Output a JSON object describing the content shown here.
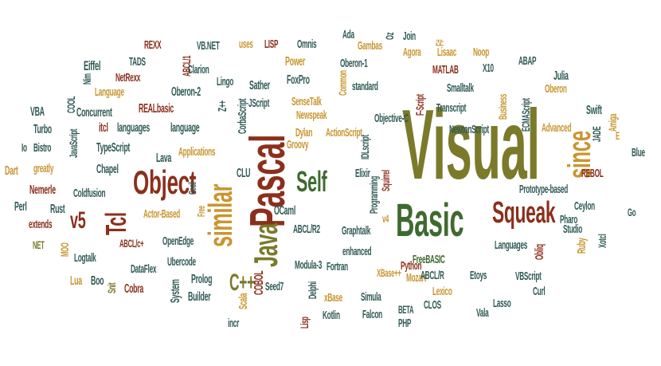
{
  "colors": {
    "red": "#8b2f1c",
    "olive": "#7a7a2a",
    "teal": "#2f5a55",
    "gold": "#c9952f",
    "green": "#3f6a2f"
  },
  "words": [
    "Visual",
    "Basic",
    "Pascal",
    "Object",
    "Squeak",
    "similar",
    "Java",
    "Self",
    "since",
    "Tcl",
    "v5",
    "C++",
    "Scala",
    "COBOL",
    "incr",
    "Builder",
    "Prolog",
    "System",
    "Cobra",
    "Snit",
    "Lua",
    "Boo",
    "MOO",
    "NET",
    "extends",
    "Perl",
    "Dart",
    "Io",
    "Nemerle",
    "Coldfusion",
    "greatly",
    "Chapel",
    "JavaScript",
    "Bistro",
    "Turbo",
    "Rust",
    "VBA",
    "COOL",
    "Concurrent",
    "Language",
    "Eiffel",
    "NetRexx",
    "Nim",
    "TADS",
    "REXX",
    "ABCL/1",
    "VB.NET",
    "Clarion",
    "Oberon-2",
    "REALbasic",
    "itcl",
    "languages",
    "language",
    "TypeScript",
    "Lava",
    "Applications",
    "Cecil",
    "CLU",
    "Free",
    "Actor-Based",
    "ABCL/c+",
    "OpenEdge",
    "Ubercode",
    "DataFlex",
    "Logtalk",
    "Lingo",
    "uses",
    "LISP",
    "Sather",
    "Z++",
    "CorbaScript",
    "JScript",
    "Power",
    "FoxPro",
    "Omnis",
    "SenseTalk",
    "Newspeak",
    "Dylan",
    "ActionScript",
    "Groovy",
    "IDLscript",
    "Programming",
    "Squirrel",
    "OCaml",
    "ABCL/R2",
    "Graphtalk",
    "Modula-3",
    "enhanced",
    "Delphi",
    "Fortran",
    "Seed7",
    "Lisp",
    "xBase",
    "Simula",
    "XBase++",
    "Kotlin",
    "Falcon",
    "BETA",
    "PHP",
    "CLOS",
    "Mozart",
    "Lexico",
    "ABCL/R",
    "Etoys",
    "FreeBASIC",
    "Python",
    "Vala",
    "Lasso",
    "Curl",
    "Obliq",
    "VBScript",
    "Ruby",
    "Studio",
    "Xotcl",
    "Languages",
    "Pharo",
    "Ceylon",
    "Go",
    "Prototype-based",
    "REBOL",
    "Blue",
    "JADE",
    "Amiga",
    "E",
    "Advanced",
    "Swift",
    "Oberon",
    "Julia",
    "ABAP",
    "Business",
    "Smalltalk",
    "Transcript",
    "Objective-C",
    "NewtonScript",
    "ECMAScript",
    "MATLAB",
    "X10",
    "Noop",
    "Lisaac",
    "F-Script",
    "Join",
    "F#",
    "Oz",
    "Agora",
    "Gambas",
    "Common",
    "Ada",
    "Oberon-1",
    "standard",
    "Elixir",
    "v4"
  ]
}
